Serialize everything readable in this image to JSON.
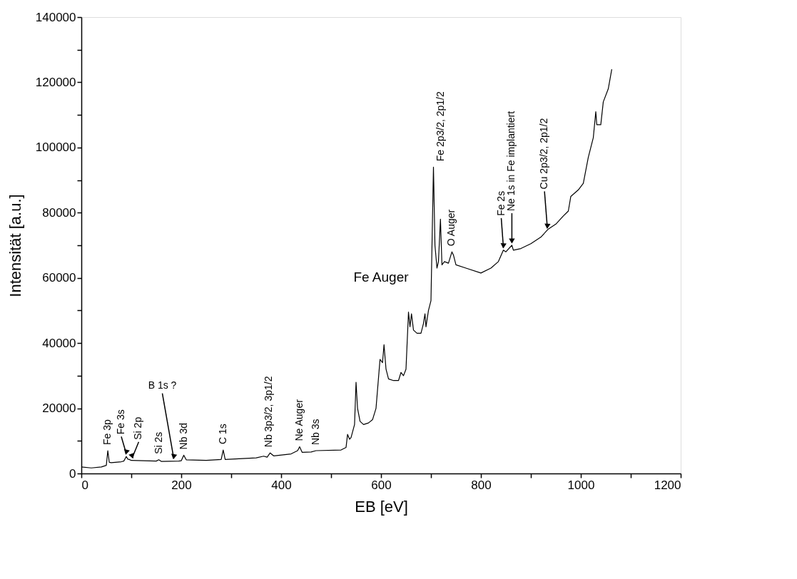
{
  "chart_data": {
    "type": "line",
    "xlabel": "EB [eV]",
    "ylabel": "Intensität [a.u.]",
    "xlim": [
      0,
      1200
    ],
    "ylim": [
      0,
      140000
    ],
    "xticks": [
      0,
      {
        "value": 100,
        "label": null
      },
      200,
      {
        "value": 300,
        "label": null
      },
      400,
      {
        "value": 500,
        "label": null
      },
      600,
      {
        "value": 700,
        "label": null
      },
      800,
      {
        "value": 900,
        "label": null
      },
      1000,
      {
        "value": 1100,
        "label": null
      },
      1200
    ],
    "yticks": [
      0,
      {
        "value": 10000,
        "label": null
      },
      20000,
      {
        "value": 30000,
        "label": null
      },
      40000,
      {
        "value": 50000,
        "label": null
      },
      60000,
      {
        "value": 70000,
        "label": null
      },
      80000,
      {
        "value": 90000,
        "label": null
      },
      100000,
      {
        "value": 110000,
        "label": null
      },
      120000,
      {
        "value": 130000,
        "label": null
      },
      140000
    ],
    "grid": false,
    "marker": "none",
    "line_style": "solid",
    "series": [
      {
        "color": "#000000",
        "x": [
          0,
          20,
          40,
          50,
          53,
          56,
          60,
          80,
          85,
          90,
          93,
          96,
          100,
          150,
          155,
          160,
          195,
          200,
          205,
          210,
          250,
          280,
          284,
          288,
          350,
          365,
          372,
          378,
          385,
          420,
          433,
          437,
          442,
          460,
          470,
          520,
          530,
          533,
          537,
          540,
          547,
          550,
          553,
          558,
          565,
          575,
          583,
          590,
          598,
          603,
          606,
          610,
          615,
          625,
          635,
          640,
          645,
          650,
          655,
          658,
          661,
          665,
          672,
          680,
          685,
          688,
          690,
          695,
          700,
          705,
          708,
          712,
          715,
          719,
          722,
          727,
          735,
          742,
          745,
          750,
          770,
          800,
          820,
          835,
          845,
          850,
          862,
          865,
          880,
          900,
          920,
          935,
          950,
          965,
          975,
          980,
          995,
          1005,
          1010,
          1015,
          1020,
          1025,
          1030,
          1032,
          1040,
          1045,
          1055,
          1062
        ],
        "values": [
          2000,
          1700,
          2000,
          2500,
          7000,
          3400,
          3300,
          3600,
          3800,
          5200,
          4400,
          4300,
          4000,
          3800,
          4200,
          3700,
          3800,
          3900,
          5600,
          4200,
          4000,
          4300,
          7200,
          4300,
          4800,
          5300,
          5000,
          6300,
          5400,
          6000,
          7000,
          8200,
          6500,
          6600,
          7000,
          7200,
          8000,
          12000,
          10500,
          11000,
          15000,
          28000,
          20000,
          16000,
          15000,
          15500,
          16500,
          20000,
          35000,
          34000,
          39500,
          32000,
          29000,
          28500,
          28500,
          31000,
          30000,
          32000,
          49500,
          45000,
          49000,
          44000,
          43000,
          43000,
          46000,
          49000,
          45000,
          50000,
          53000,
          94000,
          70000,
          63000,
          65000,
          78000,
          64000,
          65000,
          64500,
          68000,
          67000,
          64000,
          63000,
          61500,
          63000,
          65000,
          68500,
          68000,
          70000,
          68500,
          69000,
          70500,
          72500,
          75000,
          76500,
          79000,
          80500,
          85000,
          87000,
          89000,
          93000,
          97000,
          100000,
          103000,
          111000,
          107000,
          107000,
          114000,
          118000,
          124000
        ]
      }
    ],
    "annotations": [
      {
        "text": "Fe 3p",
        "x": 53,
        "y": 7000
      },
      {
        "text": "Fe 3s",
        "x": 90,
        "y": 5200
      },
      {
        "text": "Si 2p",
        "x": 102,
        "y": 4000
      },
      {
        "text": "Si 2s",
        "x": 155,
        "y": 4200
      },
      {
        "text": "B 1s ?",
        "x": 185,
        "y": 3800
      },
      {
        "text": "Nb 3d",
        "x": 205,
        "y": 5600
      },
      {
        "text": "C 1s",
        "x": 284,
        "y": 7200
      },
      {
        "text": "Nb 3p3/2, 3p1/2",
        "x": 375,
        "y": 6300
      },
      {
        "text": "Ne Auger",
        "x": 437,
        "y": 8200
      },
      {
        "text": "Nb 3s",
        "x": 470,
        "y": 7000
      },
      "Fe Auger",
      {
        "text": "Fe 2p3/2, 2p1/2",
        "x": 705,
        "y": 94000
      },
      {
        "text": "O Auger",
        "x": 742,
        "y": 68000
      },
      {
        "text": "Fe 2s",
        "x": 845,
        "y": 68500
      },
      {
        "text": "Ne 1s in Fe implantiert",
        "x": 862,
        "y": 70000
      },
      {
        "text": "Cu 2p3/2, 2p1/2",
        "x": 933,
        "y": 74500
      }
    ]
  }
}
